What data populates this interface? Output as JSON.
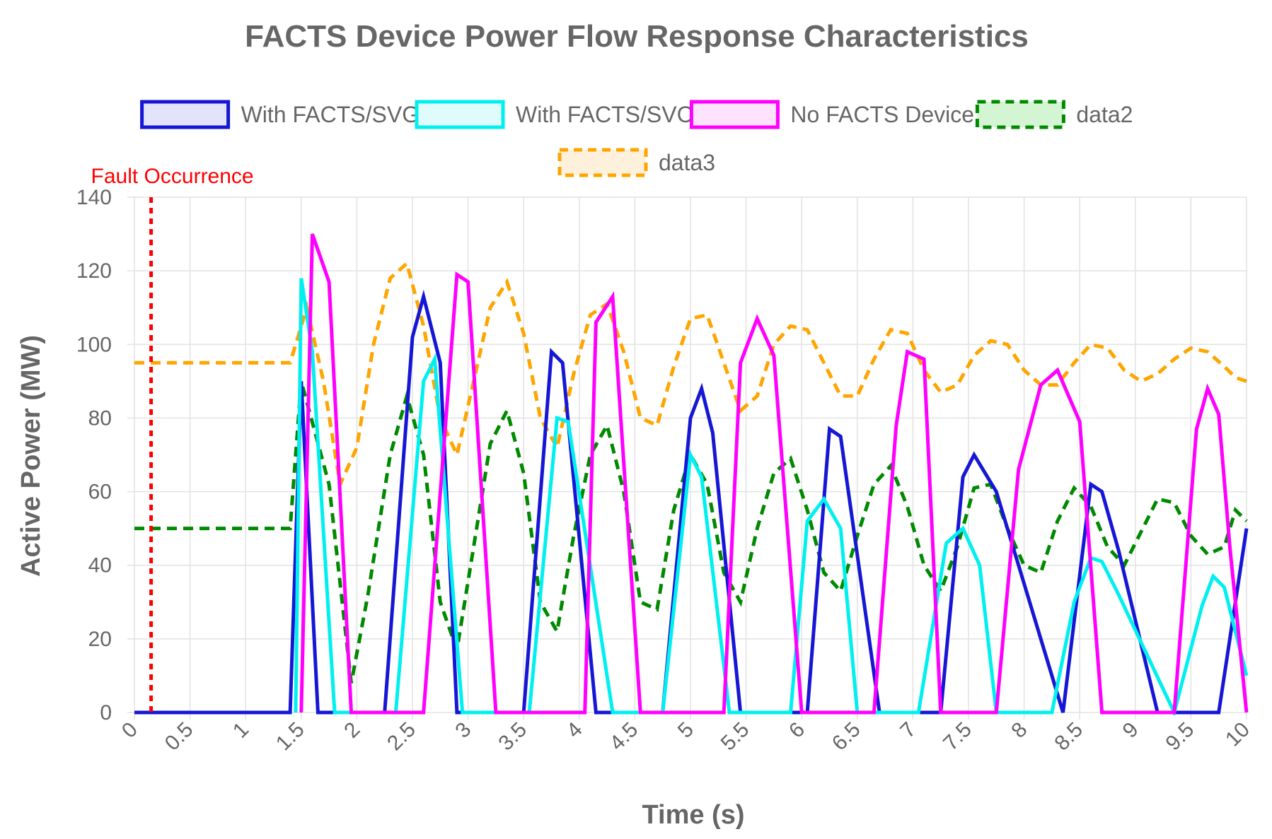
{
  "chart_data": {
    "type": "line",
    "title": "FACTS Device Power Flow Response Characteristics",
    "xlabel": "Time (s)",
    "ylabel": "Active Power (MW)",
    "xlim": [
      0,
      10
    ],
    "ylim": [
      0,
      140
    ],
    "x_ticks": [
      "0",
      "0.5",
      "1",
      "1.5",
      "2",
      "2.5",
      "3",
      "3.5",
      "4",
      "4.5",
      "5",
      "5.5",
      "6",
      "6.5",
      "7",
      "7.5",
      "8",
      "8.5",
      "9",
      "9.5",
      "10"
    ],
    "y_ticks": [
      "0",
      "20",
      "40",
      "60",
      "80",
      "100",
      "120",
      "140"
    ],
    "grid": true,
    "legend_position": "top",
    "annotation": {
      "label": "Fault Occurrence",
      "x": 0.15,
      "color": "#ff0000",
      "style": "dotted vertical line"
    },
    "series": [
      {
        "name": "With FACTS/SVG",
        "color": "#1616d6",
        "fill": "#e3e3fa",
        "style": "solid",
        "x": [
          0,
          1.4,
          1.5,
          1.65,
          2.25,
          2.5,
          2.6,
          2.75,
          2.9,
          3.5,
          3.75,
          3.85,
          4.15,
          4.75,
          5.0,
          5.1,
          5.2,
          5.45,
          6.05,
          6.25,
          6.35,
          6.7,
          7.25,
          7.45,
          7.55,
          7.75,
          8.35,
          8.6,
          8.7,
          8.85,
          9.2,
          9.75,
          10.0
        ],
        "y": [
          0,
          0,
          90,
          0,
          0,
          102,
          113,
          95,
          0,
          0,
          98,
          95,
          0,
          0,
          80,
          88,
          76,
          0,
          0,
          77,
          75,
          0,
          0,
          64,
          70,
          60,
          0,
          62,
          60,
          44,
          0,
          0,
          50
        ]
      },
      {
        "name": "With FACTS/SVC",
        "color": "#00f0f0",
        "fill": "#e0fbfb",
        "style": "solid",
        "x": [
          1.45,
          1.5,
          1.6,
          1.8,
          2.35,
          2.6,
          2.7,
          2.95,
          3.55,
          3.8,
          3.9,
          4.3,
          4.75,
          5.0,
          5.1,
          5.35,
          5.9,
          6.05,
          6.2,
          6.35,
          6.5,
          7.05,
          7.3,
          7.45,
          7.6,
          7.75,
          8.25,
          8.45,
          8.6,
          8.7,
          8.85,
          9.35,
          9.6,
          9.7,
          9.8,
          10.0
        ],
        "y": [
          0,
          118,
          98,
          0,
          0,
          90,
          96,
          0,
          0,
          80,
          79,
          0,
          0,
          70,
          64,
          0,
          0,
          52,
          58,
          50,
          0,
          0,
          46,
          50,
          40,
          0,
          0,
          30,
          42,
          41,
          32,
          0,
          29,
          37,
          34,
          10
        ]
      },
      {
        "name": "No FACTS Device",
        "color": "#ff00ff",
        "fill": "#fde3fd",
        "style": "solid",
        "x": [
          1.5,
          1.6,
          1.75,
          1.95,
          2.6,
          2.9,
          3.0,
          3.25,
          4.05,
          4.15,
          4.3,
          4.55,
          5.3,
          5.45,
          5.6,
          5.75,
          6.0,
          6.65,
          6.85,
          6.95,
          7.1,
          7.25,
          7.75,
          7.95,
          8.15,
          8.3,
          8.5,
          8.7,
          9.35,
          9.55,
          9.65,
          9.75,
          9.85,
          10.0
        ],
        "y": [
          0,
          130,
          117,
          0,
          0,
          119,
          117,
          0,
          0,
          106,
          113,
          0,
          0,
          95,
          107,
          97,
          0,
          0,
          78,
          98,
          96,
          0,
          0,
          66,
          89,
          93,
          79,
          0,
          0,
          77,
          88,
          81,
          45,
          0
        ]
      },
      {
        "name": "data2",
        "color": "#008a00",
        "fill": "#d4f5d4",
        "style": "dashed",
        "x": [
          0,
          1.4,
          1.5,
          1.75,
          1.95,
          2.1,
          2.3,
          2.45,
          2.6,
          2.75,
          2.9,
          3.05,
          3.2,
          3.35,
          3.5,
          3.65,
          3.8,
          3.95,
          4.1,
          4.25,
          4.4,
          4.55,
          4.7,
          4.85,
          5.0,
          5.15,
          5.3,
          5.45,
          5.6,
          5.75,
          5.9,
          6.05,
          6.2,
          6.35,
          6.5,
          6.65,
          6.8,
          6.95,
          7.1,
          7.25,
          7.4,
          7.55,
          7.7,
          7.85,
          8.0,
          8.15,
          8.3,
          8.45,
          8.6,
          8.75,
          8.9,
          9.05,
          9.2,
          9.35,
          9.5,
          9.65,
          9.8,
          9.9,
          10.0
        ],
        "y": [
          50,
          50,
          90,
          62,
          8,
          32,
          70,
          86,
          70,
          30,
          17,
          45,
          73,
          82,
          65,
          30,
          22,
          48,
          70,
          78,
          60,
          30,
          28,
          55,
          70,
          62,
          38,
          30,
          50,
          65,
          69,
          55,
          38,
          33,
          48,
          62,
          67,
          56,
          40,
          33,
          45,
          61,
          62,
          50,
          40,
          38,
          52,
          61,
          56,
          45,
          40,
          49,
          58,
          57,
          48,
          43,
          45,
          55,
          52
        ]
      },
      {
        "name": "data3",
        "color": "#ffa500",
        "fill": "#fdf1dc",
        "style": "dashed",
        "x": [
          0,
          1.4,
          1.55,
          1.7,
          1.85,
          2.0,
          2.15,
          2.3,
          2.45,
          2.6,
          2.75,
          2.9,
          3.05,
          3.2,
          3.35,
          3.5,
          3.65,
          3.8,
          3.95,
          4.1,
          4.25,
          4.4,
          4.55,
          4.7,
          4.85,
          5.0,
          5.15,
          5.3,
          5.45,
          5.6,
          5.75,
          5.9,
          6.05,
          6.2,
          6.35,
          6.5,
          6.65,
          6.8,
          6.95,
          7.1,
          7.25,
          7.4,
          7.55,
          7.7,
          7.85,
          8.0,
          8.15,
          8.3,
          8.45,
          8.6,
          8.75,
          8.9,
          9.05,
          9.2,
          9.35,
          9.5,
          9.65,
          9.8,
          9.9,
          10.0
        ],
        "y": [
          95,
          95,
          110,
          90,
          62,
          72,
          100,
          118,
          122,
          105,
          80,
          70,
          90,
          110,
          117,
          103,
          80,
          72,
          92,
          108,
          111,
          98,
          80,
          78,
          94,
          107,
          108,
          95,
          82,
          86,
          100,
          105,
          104,
          95,
          86,
          86,
          96,
          104,
          103,
          93,
          87,
          89,
          97,
          101,
          100,
          93,
          89,
          89,
          95,
          100,
          99,
          93,
          90,
          92,
          96,
          99,
          98,
          94,
          91,
          90
        ]
      }
    ]
  }
}
